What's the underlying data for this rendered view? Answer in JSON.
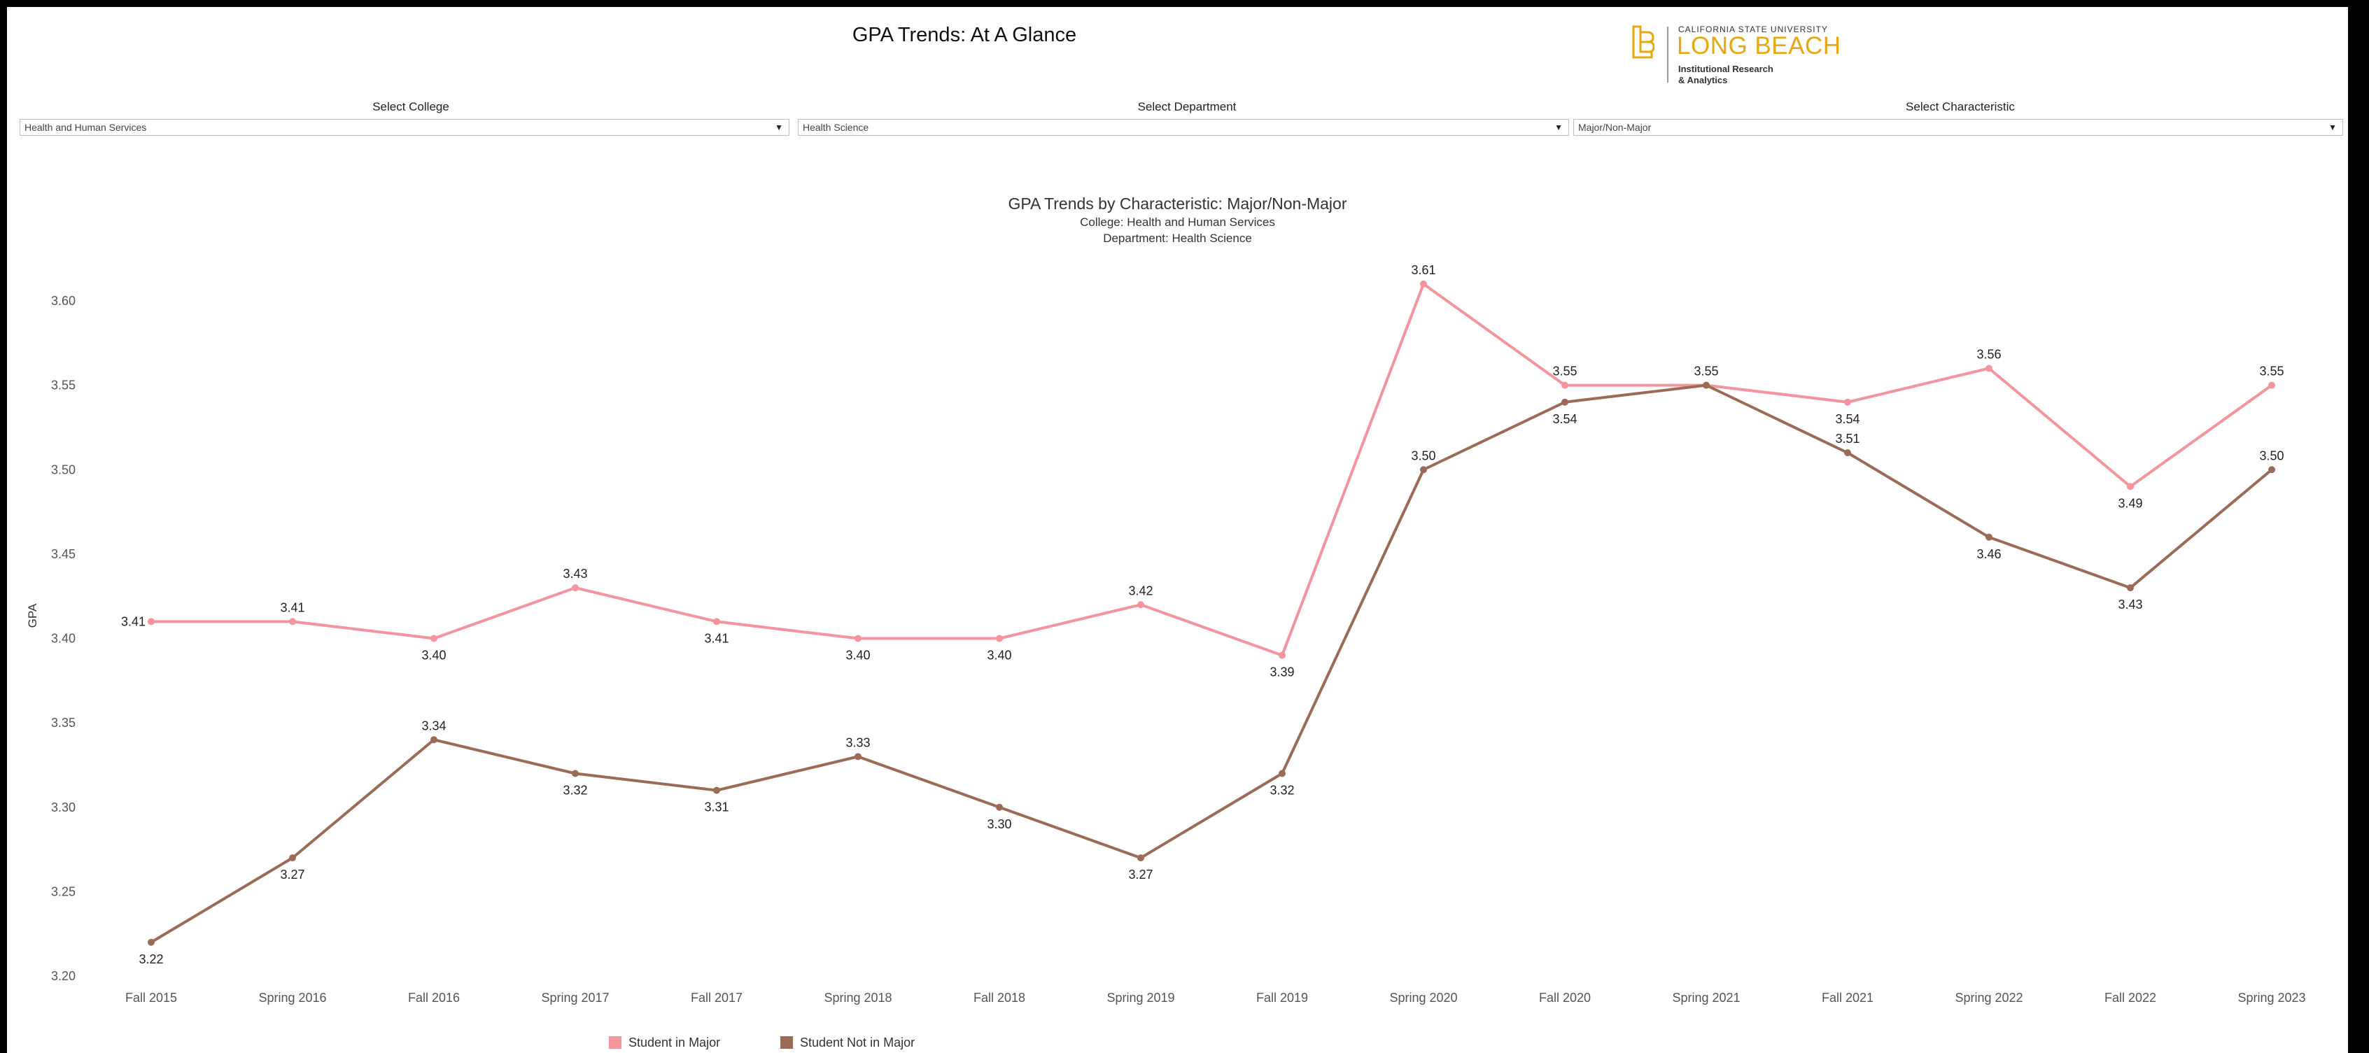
{
  "header": {
    "title": "GPA Trends: At A Glance"
  },
  "logo": {
    "line1": "CALIFORNIA STATE UNIVERSITY",
    "line2": "LONG BEACH",
    "line3": "Institutional Research",
    "line4": "& Analytics",
    "color": "#E8A70F"
  },
  "filters": {
    "college": {
      "label": "Select College",
      "value": "Health and Human Services"
    },
    "department": {
      "label": "Select Department",
      "value": "Health Science"
    },
    "characteristic": {
      "label": "Select Characteristic",
      "value": "Major/Non-Major"
    }
  },
  "chart": {
    "title": "GPA Trends by Characteristic: Major/Non-Major",
    "subtitle1": "College: Health and Human Services",
    "subtitle2": "Department: Health Science"
  },
  "chart_data": {
    "type": "line",
    "title": "GPA Trends by Characteristic: Major/Non-Major",
    "xlabel": "",
    "ylabel": "GPA",
    "ylim": [
      3.2,
      3.6
    ],
    "yticks": [
      "3.20",
      "3.25",
      "3.30",
      "3.35",
      "3.40",
      "3.45",
      "3.50",
      "3.55",
      "3.60"
    ],
    "grid": false,
    "legend_position": "bottom",
    "categories": [
      "Fall 2015",
      "Spring 2016",
      "Fall 2016",
      "Spring 2017",
      "Fall 2017",
      "Spring 2018",
      "Fall 2018",
      "Spring 2019",
      "Fall 2019",
      "Spring 2020",
      "Fall 2020",
      "Spring 2021",
      "Fall 2021",
      "Spring 2022",
      "Fall 2022",
      "Spring 2023"
    ],
    "series": [
      {
        "name": "Student in Major",
        "color": "#F4949C",
        "values": [
          3.41,
          3.41,
          3.4,
          3.43,
          3.41,
          3.4,
          3.4,
          3.42,
          3.39,
          3.61,
          3.55,
          3.55,
          3.54,
          3.56,
          3.49,
          3.55
        ],
        "labels": [
          "3.41",
          "3.41",
          "3.40",
          "3.43",
          "3.41",
          "3.40",
          "3.40",
          "3.42",
          "3.39",
          "3.61",
          "3.55",
          "3.55",
          "3.54",
          "3.56",
          "3.49",
          "3.55"
        ],
        "label_below": [
          false,
          false,
          true,
          false,
          true,
          true,
          true,
          false,
          true,
          false,
          false,
          false,
          true,
          false,
          true,
          false
        ]
      },
      {
        "name": "Student Not in Major",
        "color": "#9C6B55",
        "values": [
          3.22,
          3.27,
          3.34,
          3.32,
          3.31,
          3.33,
          3.3,
          3.27,
          3.32,
          3.5,
          3.54,
          3.55,
          3.51,
          3.46,
          3.43,
          3.5
        ],
        "labels": [
          "3.22",
          "3.27",
          "3.34",
          "3.32",
          "3.31",
          "3.33",
          "3.30",
          "3.27",
          "3.32",
          "3.50",
          "3.54",
          "",
          "3.51",
          "3.46",
          "3.43",
          "3.50"
        ],
        "label_below": [
          true,
          true,
          false,
          true,
          true,
          false,
          true,
          true,
          true,
          false,
          true,
          false,
          false,
          true,
          true,
          false
        ]
      }
    ]
  }
}
